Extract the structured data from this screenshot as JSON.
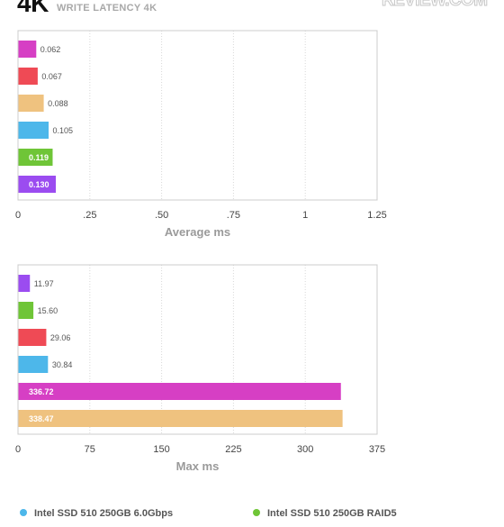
{
  "header": {
    "size_label": "4K",
    "subtitle": "WRITE LATENCY 4K",
    "logo": "REVIEW.COM"
  },
  "colors": {
    "magenta": "#d63fc4",
    "red": "#ef4a55",
    "orange": "#efc27f",
    "blue": "#4db7ea",
    "green": "#6fc537",
    "purple": "#9b4cf0"
  },
  "legend": {
    "items": [
      {
        "label": "Intel SSD 510 250GB 6.0Gbps",
        "color": "#4db7ea"
      },
      {
        "label": "Intel SSD 510 250GB RAID5",
        "color": "#6fc537"
      }
    ]
  },
  "chart_data": [
    {
      "type": "bar",
      "orientation": "horizontal",
      "xlabel": "Average ms",
      "xlim": [
        0,
        1.25
      ],
      "xticks": [
        "0",
        ".25",
        ".50",
        ".75",
        "1",
        "1.25"
      ],
      "bars": [
        {
          "value": 0.062,
          "label": "0.062",
          "color": "#d63fc4"
        },
        {
          "value": 0.067,
          "label": "0.067",
          "color": "#ef4a55"
        },
        {
          "value": 0.088,
          "label": "0.088",
          "color": "#efc27f"
        },
        {
          "value": 0.105,
          "label": "0.105",
          "color": "#4db7ea"
        },
        {
          "value": 0.119,
          "label": "0.119",
          "color": "#6fc537"
        },
        {
          "value": 0.13,
          "label": "0.130",
          "color": "#9b4cf0"
        }
      ]
    },
    {
      "type": "bar",
      "orientation": "horizontal",
      "xlabel": "Max ms",
      "xlim": [
        0,
        375
      ],
      "xticks": [
        "0",
        "75",
        "150",
        "225",
        "300",
        "375"
      ],
      "bars": [
        {
          "value": 11.97,
          "label": "11.97",
          "color": "#9b4cf0"
        },
        {
          "value": 15.6,
          "label": "15.60",
          "color": "#6fc537"
        },
        {
          "value": 29.06,
          "label": "29.06",
          "color": "#ef4a55"
        },
        {
          "value": 30.84,
          "label": "30.84",
          "color": "#4db7ea"
        },
        {
          "value": 336.72,
          "label": "336.72",
          "color": "#d63fc4"
        },
        {
          "value": 338.47,
          "label": "338.47",
          "color": "#efc27f"
        }
      ]
    }
  ]
}
